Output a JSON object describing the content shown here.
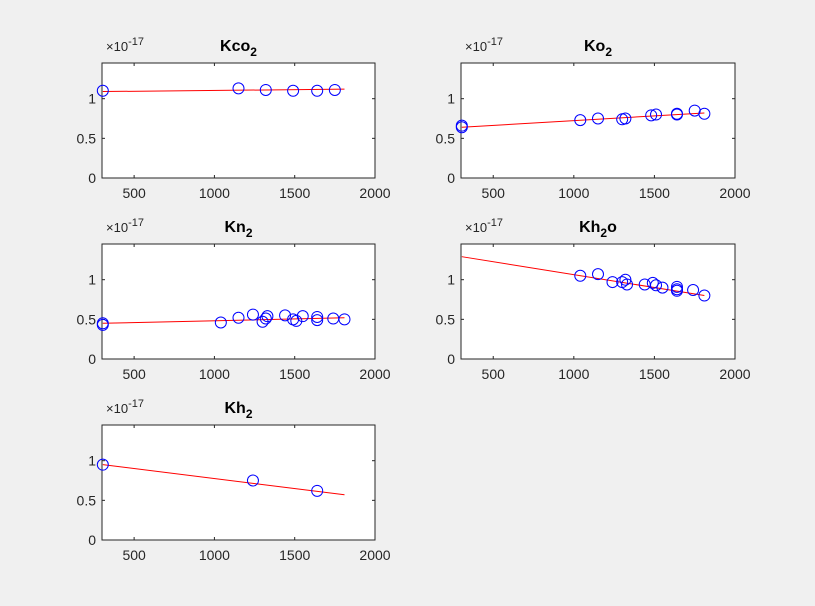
{
  "figure": {
    "background": "#f0f0f0",
    "axes_background": "#ffffff",
    "axis_color": "#262626",
    "fit_color": "#ff0000",
    "marker_color": "#0000ff"
  },
  "chart_data": [
    {
      "type": "scatter",
      "title": "Kco",
      "title_sub": "2",
      "title_suffix": "",
      "exponent_base": "×10",
      "exponent_power": "-17",
      "xlim": [
        300,
        2000
      ],
      "ylim": [
        0,
        1.45
      ],
      "xticks": [
        500,
        1000,
        1500,
        2000
      ],
      "xtick_labels": [
        "500",
        "1000",
        "1500",
        "2000"
      ],
      "yticks": [
        0,
        0.5,
        1
      ],
      "ytick_labels": [
        "0",
        "0.5",
        "1"
      ],
      "points": {
        "x": [
          305,
          1150,
          1320,
          1490,
          1640,
          1750
        ],
        "y": [
          1.1,
          1.13,
          1.11,
          1.1,
          1.1,
          1.11
        ]
      },
      "fit": {
        "x": [
          305,
          1810
        ],
        "y": [
          1.09,
          1.12
        ]
      }
    },
    {
      "type": "scatter",
      "title": "Ko",
      "title_sub": "2",
      "title_suffix": "",
      "exponent_base": "×10",
      "exponent_power": "-17",
      "xlim": [
        300,
        2000
      ],
      "ylim": [
        0,
        1.45
      ],
      "xticks": [
        500,
        1000,
        1500,
        2000
      ],
      "xtick_labels": [
        "500",
        "1000",
        "1500",
        "2000"
      ],
      "yticks": [
        0,
        0.5,
        1
      ],
      "ytick_labels": [
        "0",
        "0.5",
        "1"
      ],
      "points": {
        "x": [
          305,
          305,
          1040,
          1150,
          1300,
          1320,
          1480,
          1510,
          1640,
          1640,
          1750,
          1810
        ],
        "y": [
          0.64,
          0.66,
          0.73,
          0.75,
          0.74,
          0.75,
          0.79,
          0.8,
          0.8,
          0.81,
          0.85,
          0.81
        ]
      },
      "fit": {
        "x": [
          305,
          1810
        ],
        "y": [
          0.64,
          0.82
        ]
      }
    },
    {
      "type": "scatter",
      "title": "Kn",
      "title_sub": "2",
      "title_suffix": "",
      "exponent_base": "×10",
      "exponent_power": "-17",
      "xlim": [
        300,
        2000
      ],
      "ylim": [
        0,
        1.45
      ],
      "xticks": [
        500,
        1000,
        1500,
        2000
      ],
      "xtick_labels": [
        "500",
        "1000",
        "1500",
        "2000"
      ],
      "yticks": [
        0,
        0.5,
        1
      ],
      "ytick_labels": [
        "0",
        "0.5",
        "1"
      ],
      "points": {
        "x": [
          305,
          305,
          1040,
          1150,
          1240,
          1300,
          1320,
          1330,
          1440,
          1490,
          1510,
          1550,
          1640,
          1640,
          1740,
          1810
        ],
        "y": [
          0.43,
          0.45,
          0.46,
          0.52,
          0.56,
          0.47,
          0.51,
          0.54,
          0.55,
          0.5,
          0.48,
          0.54,
          0.49,
          0.53,
          0.51,
          0.5
        ]
      },
      "fit": {
        "x": [
          305,
          1810
        ],
        "y": [
          0.45,
          0.52
        ]
      }
    },
    {
      "type": "scatter",
      "title": "Kh",
      "title_sub": "2",
      "title_suffix": "o",
      "exponent_base": "×10",
      "exponent_power": "-17",
      "xlim": [
        300,
        2000
      ],
      "ylim": [
        0,
        1.45
      ],
      "xticks": [
        500,
        1000,
        1500,
        2000
      ],
      "xtick_labels": [
        "500",
        "1000",
        "1500",
        "2000"
      ],
      "yticks": [
        0,
        0.5,
        1
      ],
      "ytick_labels": [
        "0",
        "0.5",
        "1"
      ],
      "points": {
        "x": [
          1040,
          1150,
          1240,
          1300,
          1320,
          1330,
          1440,
          1490,
          1510,
          1550,
          1640,
          1640,
          1640,
          1740,
          1810
        ],
        "y": [
          1.05,
          1.07,
          0.97,
          0.97,
          1.0,
          0.94,
          0.94,
          0.96,
          0.93,
          0.9,
          0.91,
          0.88,
          0.86,
          0.87,
          0.8
        ]
      },
      "fit": {
        "x": [
          305,
          1810
        ],
        "y": [
          1.29,
          0.8
        ]
      }
    },
    {
      "type": "scatter",
      "title": "Kh",
      "title_sub": "2",
      "title_suffix": "",
      "exponent_base": "×10",
      "exponent_power": "-17",
      "xlim": [
        300,
        2000
      ],
      "ylim": [
        0,
        1.45
      ],
      "xticks": [
        500,
        1000,
        1500,
        2000
      ],
      "xtick_labels": [
        "500",
        "1000",
        "1500",
        "2000"
      ],
      "yticks": [
        0,
        0.5,
        1
      ],
      "ytick_labels": [
        "0",
        "0.5",
        "1"
      ],
      "points": {
        "x": [
          305,
          1240,
          1640
        ],
        "y": [
          0.95,
          0.75,
          0.62
        ]
      },
      "fit": {
        "x": [
          305,
          1810
        ],
        "y": [
          0.95,
          0.57
        ]
      }
    }
  ]
}
